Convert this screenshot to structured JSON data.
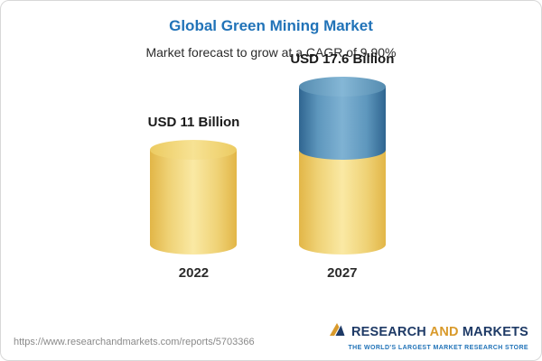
{
  "header": {
    "title": "Global Green Mining Market",
    "subtitle": "Market forecast to grow at a CAGR of 9.90%"
  },
  "chart_data": {
    "type": "bar",
    "title": "Global Green Mining Market",
    "subtitle": "Market forecast to grow at a CAGR of 9.90%",
    "categories": [
      "2022",
      "2027"
    ],
    "values": [
      11,
      17.6
    ],
    "value_labels": [
      "USD 11 Billion",
      "USD 17.6 Billion"
    ],
    "unit": "USD Billion",
    "cagr": "9.90%",
    "ylim": [
      0,
      17.6
    ],
    "grid": false,
    "legend": false,
    "colors": {
      "base_bar": "#efd276",
      "growth_segment": "#5e97bd",
      "title_accent": "#2173b8"
    }
  },
  "footer": {
    "url": "https://www.researchandmarkets.com/reports/5703366",
    "logo_word_1": "RESEARCH",
    "logo_word_2": "AND",
    "logo_word_3": "MARKETS",
    "tagline": "THE WORLD'S LARGEST MARKET RESEARCH STORE"
  }
}
